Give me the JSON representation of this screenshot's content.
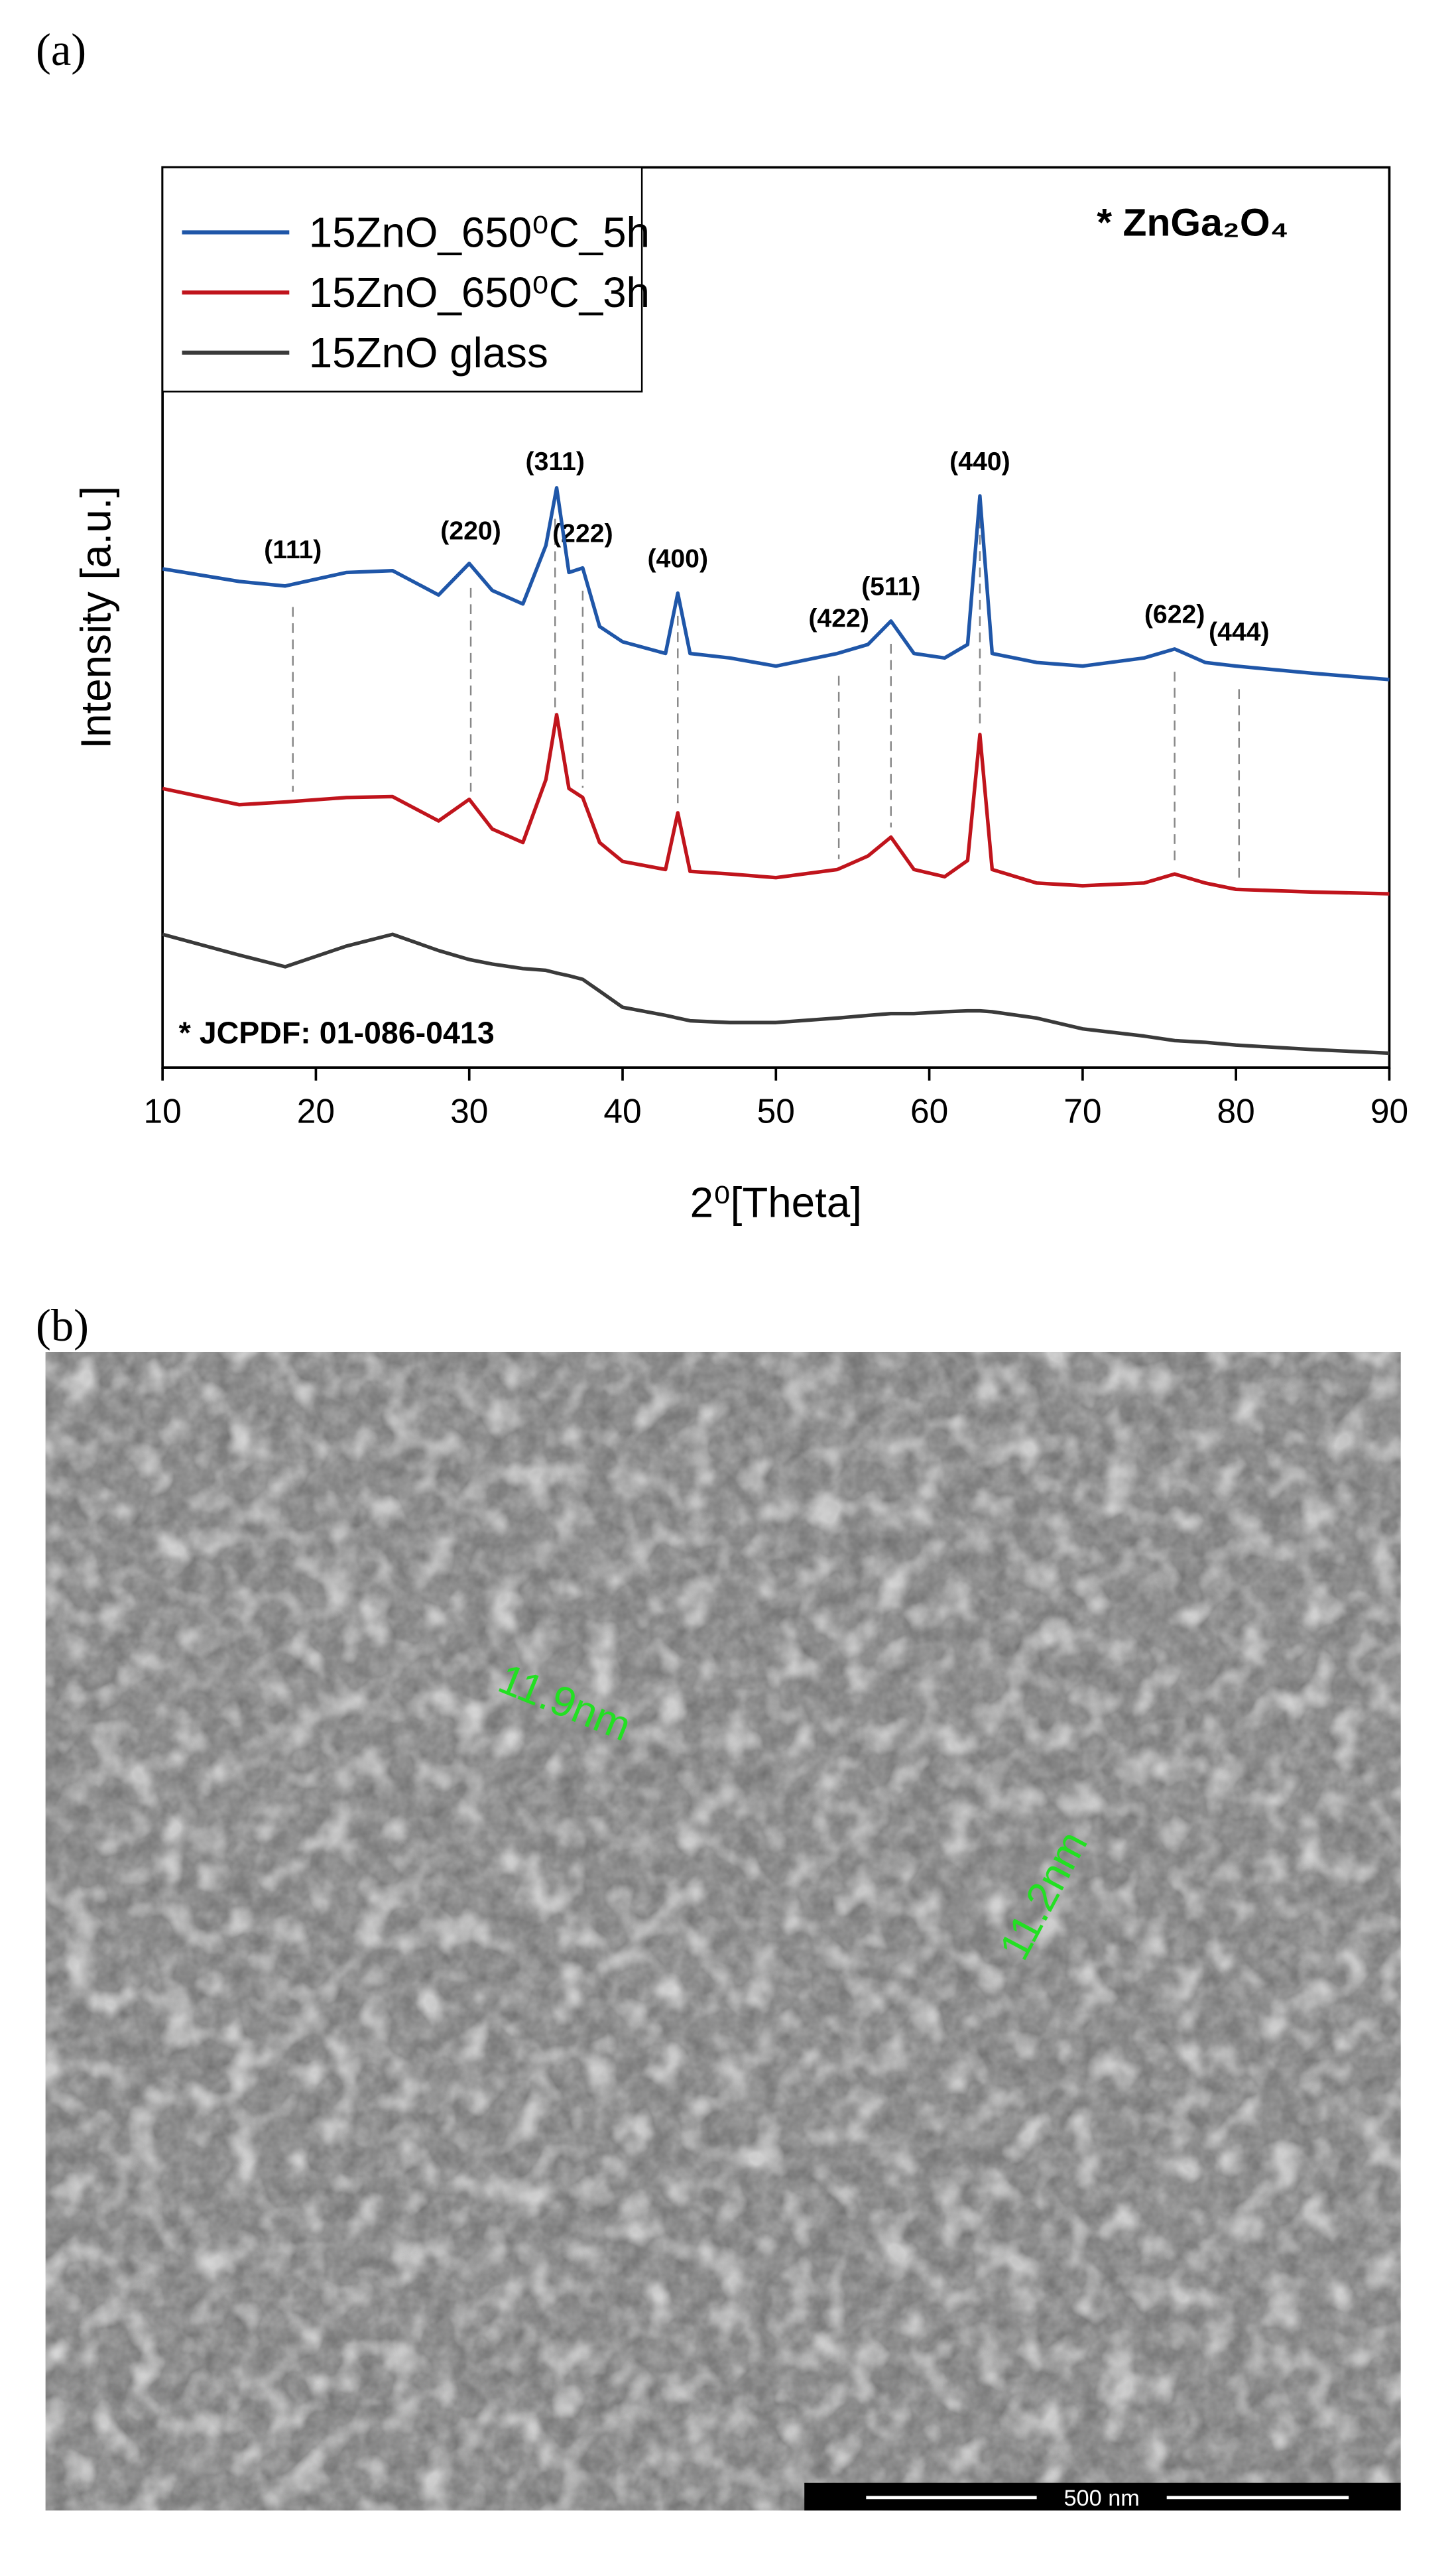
{
  "panel_labels": [
    "(a)",
    "(b)"
  ],
  "chart_data": {
    "type": "line",
    "x_label": "2⁰[Theta]",
    "y_label": "Intensity [a.u.]",
    "annotation": "* ZnGa₂O₄",
    "footnote": "* JCPDF: 01-086-0413",
    "xlim": [
      10,
      90
    ],
    "xticks": [
      10,
      20,
      30,
      40,
      50,
      60,
      70,
      80,
      90
    ],
    "ylim": [
      0,
      100
    ],
    "legend": "upper left",
    "x": [
      10,
      15,
      18,
      22,
      25,
      28,
      30,
      31.5,
      33.5,
      35,
      35.7,
      36.5,
      37.4,
      38.5,
      40,
      42.8,
      43.6,
      44.4,
      47,
      50,
      54,
      56,
      57.5,
      59,
      61,
      62.5,
      63.3,
      64.1,
      67,
      70,
      74,
      76,
      78,
      80,
      85,
      90
    ],
    "series": [
      {
        "name": "15ZnO_650⁰C_5h",
        "color": "#1f56a8",
        "values": [
          55.4,
          54,
          53.5,
          55,
          55.2,
          52.5,
          56,
          53,
          51.5,
          58,
          64.4,
          55,
          55.5,
          49,
          47.3,
          46,
          52.7,
          46,
          45.5,
          44.6,
          46,
          47,
          49.6,
          46,
          45.5,
          47,
          63.5,
          46,
          45,
          44.6,
          45.5,
          46.5,
          45,
          44.6,
          43.8,
          43.1
        ]
      },
      {
        "name": "15ZnO_650⁰C_3h",
        "color": "#c0141c",
        "values": [
          31,
          29.2,
          29.5,
          30,
          30.1,
          27.4,
          29.8,
          26.5,
          25,
          32,
          39.2,
          31,
          30,
          25,
          22.9,
          22,
          28.3,
          21.8,
          21.5,
          21.1,
          22,
          23.5,
          25.6,
          22,
          21.2,
          23,
          37,
          22,
          20.5,
          20.2,
          20.5,
          21.5,
          20.5,
          19.8,
          19.5,
          19.3
        ]
      },
      {
        "name": "15ZnO glass",
        "color": "#3a3a3a",
        "values": [
          14.8,
          12.5,
          11.2,
          13.5,
          14.8,
          13,
          12,
          11.5,
          11,
          10.8,
          10.5,
          10.2,
          9.8,
          8.5,
          6.7,
          5.8,
          5.5,
          5.2,
          5,
          5,
          5.5,
          5.8,
          6,
          6,
          6.2,
          6.3,
          6.3,
          6.2,
          5.5,
          4.3,
          3.5,
          3,
          2.8,
          2.5,
          2,
          1.6
        ]
      }
    ],
    "peaks": [
      {
        "label": "(111)",
        "x": 18.5
      },
      {
        "label": "(220)",
        "x": 30.1
      },
      {
        "label": "(311)",
        "x": 35.6
      },
      {
        "label": "(222)",
        "x": 37.4
      },
      {
        "label": "(400)",
        "x": 43.6
      },
      {
        "label": "(422)",
        "x": 54.1
      },
      {
        "label": "(511)",
        "x": 57.5
      },
      {
        "label": "(440)",
        "x": 63.3
      },
      {
        "label": "(622)",
        "x": 76
      },
      {
        "label": "(444)",
        "x": 80.2
      }
    ]
  },
  "micrograph": {
    "measurements": [
      "11.9nm",
      "11.2nm"
    ],
    "scale_bar": "500 nm"
  }
}
